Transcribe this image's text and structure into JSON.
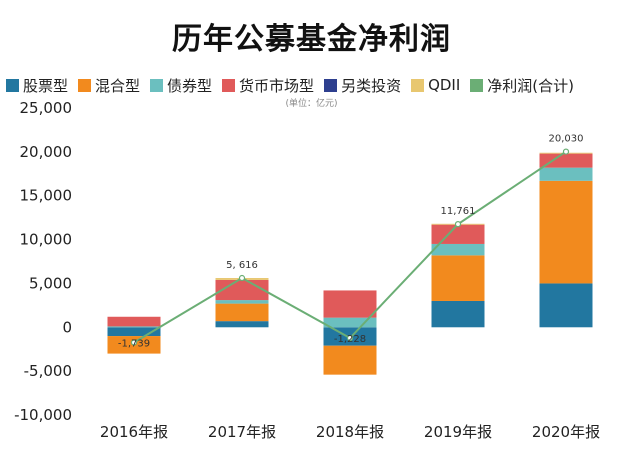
{
  "chart_data": {
    "type": "bar",
    "title": "历年公募基金净利润",
    "unit_note": "(单位：亿元)",
    "categories": [
      "2016年报",
      "2017年报",
      "2018年报",
      "2019年报",
      "2020年报"
    ],
    "ylim": [
      -10000,
      25000
    ],
    "yticks": [
      "25,000",
      "20,000",
      "15,000",
      "10,000",
      "5,000",
      "0",
      "-5,000",
      "-10,000"
    ],
    "ytick_values": [
      25000,
      20000,
      15000,
      10000,
      5000,
      0,
      -5000,
      -10000
    ],
    "series": [
      {
        "name": "股票型",
        "color": "#2277A0",
        "values": [
          -1000,
          700,
          -2100,
          3000,
          5000
        ]
      },
      {
        "name": "混合型",
        "color": "#F28A1E",
        "values": [
          -2000,
          2000,
          -3300,
          5200,
          11700
        ]
      },
      {
        "name": "债券型",
        "color": "#6BBFBF",
        "values": [
          100,
          400,
          1100,
          1300,
          1500
        ]
      },
      {
        "name": "货币市场型",
        "color": "#E05A5A",
        "values": [
          1100,
          2300,
          3100,
          2200,
          1600
        ]
      },
      {
        "name": "另类投资",
        "color": "#2E3F8F",
        "values": [
          0,
          0,
          0,
          0,
          0
        ]
      },
      {
        "name": "QDII",
        "color": "#E8C770",
        "values": [
          0,
          216,
          0,
          100,
          100
        ]
      }
    ],
    "line": {
      "name": "净利润(合计)",
      "color": "#6BAE75",
      "values": [
        -1739,
        5616,
        -1228,
        11761,
        20030
      ]
    },
    "data_labels": [
      "-1,739",
      "5, 616",
      "-1,228",
      "11,761",
      "20,030"
    ],
    "grid": false,
    "legend_position": "top"
  }
}
